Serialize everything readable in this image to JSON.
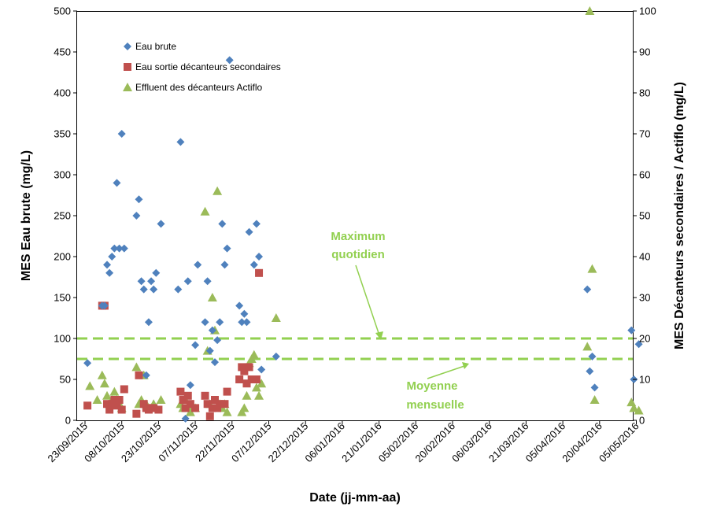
{
  "chart_data": {
    "type": "scatter",
    "xlabel": "Date (jj-mm-aa)",
    "ylabel_left": "MES Eau brute (mg/L)",
    "ylabel_right": "MES Décanteurs secondaires / Actiflo (mg/L)",
    "ylim_left": [
      0,
      500
    ],
    "ylim_right": [
      0,
      100
    ],
    "x_tick_labels": [
      "23/09/2015",
      "08/10/2015",
      "23/10/2015",
      "07/11/2015",
      "22/11/2015",
      "07/12/2015",
      "22/12/2015",
      "06/01/2016",
      "21/01/2016",
      "05/02/2016",
      "20/02/2016",
      "06/03/2016",
      "21/03/2016",
      "05/04/2016",
      "20/04/2016",
      "05/05/2016"
    ],
    "y_left_ticks": [
      "0",
      "50",
      "100",
      "150",
      "200",
      "250",
      "300",
      "350",
      "400",
      "450",
      "500"
    ],
    "y_right_ticks": [
      "0",
      "10",
      "20",
      "30",
      "40",
      "50",
      "60",
      "70",
      "80",
      "90",
      "100"
    ],
    "grid": false,
    "legend_position": "top-left",
    "colors": {
      "eau_brute": "#4f81bd",
      "decanteurs": "#c0504d",
      "actiflo": "#9bbb59",
      "reference_lines": "#92d050"
    },
    "series": [
      {
        "name": "Eau brute",
        "axis": "left",
        "marker": "diamond",
        "points": [
          [
            "2015-09-24",
            70
          ],
          [
            "2015-09-30",
            140
          ],
          [
            "2015-10-01",
            140
          ],
          [
            "2015-10-02",
            190
          ],
          [
            "2015-10-03",
            180
          ],
          [
            "2015-10-04",
            200
          ],
          [
            "2015-10-05",
            210
          ],
          [
            "2015-10-06",
            290
          ],
          [
            "2015-10-07",
            210
          ],
          [
            "2015-10-08",
            350
          ],
          [
            "2015-10-09",
            210
          ],
          [
            "2015-10-14",
            250
          ],
          [
            "2015-10-15",
            270
          ],
          [
            "2015-10-16",
            170
          ],
          [
            "2015-10-17",
            160
          ],
          [
            "2015-10-18",
            55
          ],
          [
            "2015-10-19",
            120
          ],
          [
            "2015-10-20",
            170
          ],
          [
            "2015-10-21",
            160
          ],
          [
            "2015-10-22",
            180
          ],
          [
            "2015-10-24",
            240
          ],
          [
            "2015-10-31",
            160
          ],
          [
            "2015-11-01",
            340
          ],
          [
            "2015-11-03",
            2
          ],
          [
            "2015-11-04",
            170
          ],
          [
            "2015-11-05",
            43
          ],
          [
            "2015-11-07",
            92
          ],
          [
            "2015-11-08",
            190
          ],
          [
            "2015-11-11",
            120
          ],
          [
            "2015-11-12",
            170
          ],
          [
            "2015-11-13",
            85
          ],
          [
            "2015-11-14",
            110
          ],
          [
            "2015-11-15",
            71
          ],
          [
            "2015-11-16",
            98
          ],
          [
            "2015-11-17",
            120
          ],
          [
            "2015-11-18",
            240
          ],
          [
            "2015-11-19",
            190
          ],
          [
            "2015-11-20",
            210
          ],
          [
            "2015-11-21",
            440
          ],
          [
            "2015-11-25",
            140
          ],
          [
            "2015-11-26",
            120
          ],
          [
            "2015-11-27",
            130
          ],
          [
            "2015-11-28",
            120
          ],
          [
            "2015-11-29",
            230
          ],
          [
            "2015-12-01",
            190
          ],
          [
            "2015-12-02",
            240
          ],
          [
            "2015-12-03",
            200
          ],
          [
            "2015-12-04",
            62
          ],
          [
            "2015-12-10",
            78
          ],
          [
            "2016-04-15",
            160
          ],
          [
            "2016-04-16",
            60
          ],
          [
            "2016-04-17",
            78
          ],
          [
            "2016-04-18",
            40
          ],
          [
            "2016-05-03",
            110
          ],
          [
            "2016-05-04",
            50
          ],
          [
            "2016-05-06",
            93
          ]
        ]
      },
      {
        "name": "Eau sortie décanteurs secondaires",
        "axis": "right",
        "marker": "square",
        "points": [
          [
            "2015-09-24",
            3.6
          ],
          [
            "2015-09-30",
            28
          ],
          [
            "2015-10-01",
            28
          ],
          [
            "2015-10-02",
            4
          ],
          [
            "2015-10-03",
            2.6
          ],
          [
            "2015-10-04",
            4
          ],
          [
            "2015-10-05",
            5
          ],
          [
            "2015-10-06",
            3.6
          ],
          [
            "2015-10-07",
            5
          ],
          [
            "2015-10-08",
            2.6
          ],
          [
            "2015-10-09",
            7.6
          ],
          [
            "2015-10-14",
            1.6
          ],
          [
            "2015-10-15",
            11
          ],
          [
            "2015-10-17",
            4
          ],
          [
            "2015-10-18",
            3
          ],
          [
            "2015-10-19",
            2.6
          ],
          [
            "2015-10-20",
            3
          ],
          [
            "2015-10-21",
            3
          ],
          [
            "2015-10-23",
            2.6
          ],
          [
            "2015-11-01",
            7
          ],
          [
            "2015-11-02",
            5
          ],
          [
            "2015-11-03",
            3
          ],
          [
            "2015-11-04",
            6
          ],
          [
            "2015-11-05",
            4
          ],
          [
            "2015-11-07",
            3
          ],
          [
            "2015-11-11",
            6
          ],
          [
            "2015-11-12",
            4
          ],
          [
            "2015-11-13",
            1
          ],
          [
            "2015-11-14",
            3
          ],
          [
            "2015-11-15",
            5
          ],
          [
            "2015-11-16",
            3
          ],
          [
            "2015-11-17",
            4
          ],
          [
            "2015-11-19",
            4
          ],
          [
            "2015-11-20",
            7
          ],
          [
            "2015-11-25",
            10
          ],
          [
            "2015-11-26",
            13
          ],
          [
            "2015-11-27",
            12
          ],
          [
            "2015-11-28",
            9
          ],
          [
            "2015-11-29",
            13
          ],
          [
            "2015-11-30",
            10
          ],
          [
            "2015-12-01",
            10
          ],
          [
            "2015-12-02",
            10
          ],
          [
            "2015-12-03",
            36
          ]
        ]
      },
      {
        "name": "Effluent des décanteurs Actiflo",
        "axis": "right",
        "marker": "triangle",
        "points": [
          [
            "2015-09-25",
            8.4
          ],
          [
            "2015-09-28",
            5
          ],
          [
            "2015-09-30",
            11
          ],
          [
            "2015-10-01",
            9
          ],
          [
            "2015-10-02",
            6
          ],
          [
            "2015-10-03",
            4
          ],
          [
            "2015-10-04",
            5
          ],
          [
            "2015-10-05",
            7
          ],
          [
            "2015-10-06",
            5
          ],
          [
            "2015-10-07",
            4
          ],
          [
            "2015-10-08",
            3
          ],
          [
            "2015-10-14",
            13
          ],
          [
            "2015-10-15",
            4
          ],
          [
            "2015-10-16",
            5
          ],
          [
            "2015-10-17",
            11
          ],
          [
            "2015-10-18",
            4
          ],
          [
            "2015-10-19",
            3
          ],
          [
            "2015-10-20",
            3
          ],
          [
            "2015-10-21",
            4
          ],
          [
            "2015-10-22",
            3
          ],
          [
            "2015-10-24",
            5
          ],
          [
            "2015-11-01",
            4
          ],
          [
            "2015-11-02",
            3
          ],
          [
            "2015-11-03",
            5
          ],
          [
            "2015-11-04",
            3
          ],
          [
            "2015-11-05",
            2
          ],
          [
            "2015-11-06",
            3
          ],
          [
            "2015-11-07",
            3
          ],
          [
            "2015-11-11",
            51
          ],
          [
            "2015-11-12",
            17
          ],
          [
            "2015-11-13",
            4
          ],
          [
            "2015-11-14",
            30
          ],
          [
            "2015-11-15",
            22
          ],
          [
            "2015-11-16",
            56
          ],
          [
            "2015-11-17",
            4
          ],
          [
            "2015-11-18",
            3
          ],
          [
            "2015-11-19",
            4
          ],
          [
            "2015-11-20",
            2
          ],
          [
            "2015-11-26",
            2
          ],
          [
            "2015-11-27",
            3
          ],
          [
            "2015-11-28",
            6
          ],
          [
            "2015-11-29",
            14
          ],
          [
            "2015-11-30",
            15
          ],
          [
            "2015-12-01",
            16
          ],
          [
            "2015-12-02",
            8
          ],
          [
            "2015-12-03",
            6
          ],
          [
            "2015-12-04",
            9
          ],
          [
            "2015-12-10",
            25
          ],
          [
            "2016-04-15",
            18
          ],
          [
            "2016-04-16",
            100
          ],
          [
            "2016-04-17",
            37
          ],
          [
            "2016-04-18",
            5
          ],
          [
            "2016-05-03",
            4.4
          ],
          [
            "2016-05-04",
            3
          ],
          [
            "2016-05-06",
            2.4
          ]
        ]
      }
    ],
    "reference_lines": [
      {
        "label": "Maximum quotidien",
        "axis": "right",
        "value": 20,
        "annotation_lines": [
          "Maximum",
          "quotidien"
        ]
      },
      {
        "label": "Moyenne mensuelle",
        "axis": "right",
        "value": 15,
        "annotation_lines": [
          "Moyenne",
          "mensuelle"
        ]
      }
    ]
  }
}
